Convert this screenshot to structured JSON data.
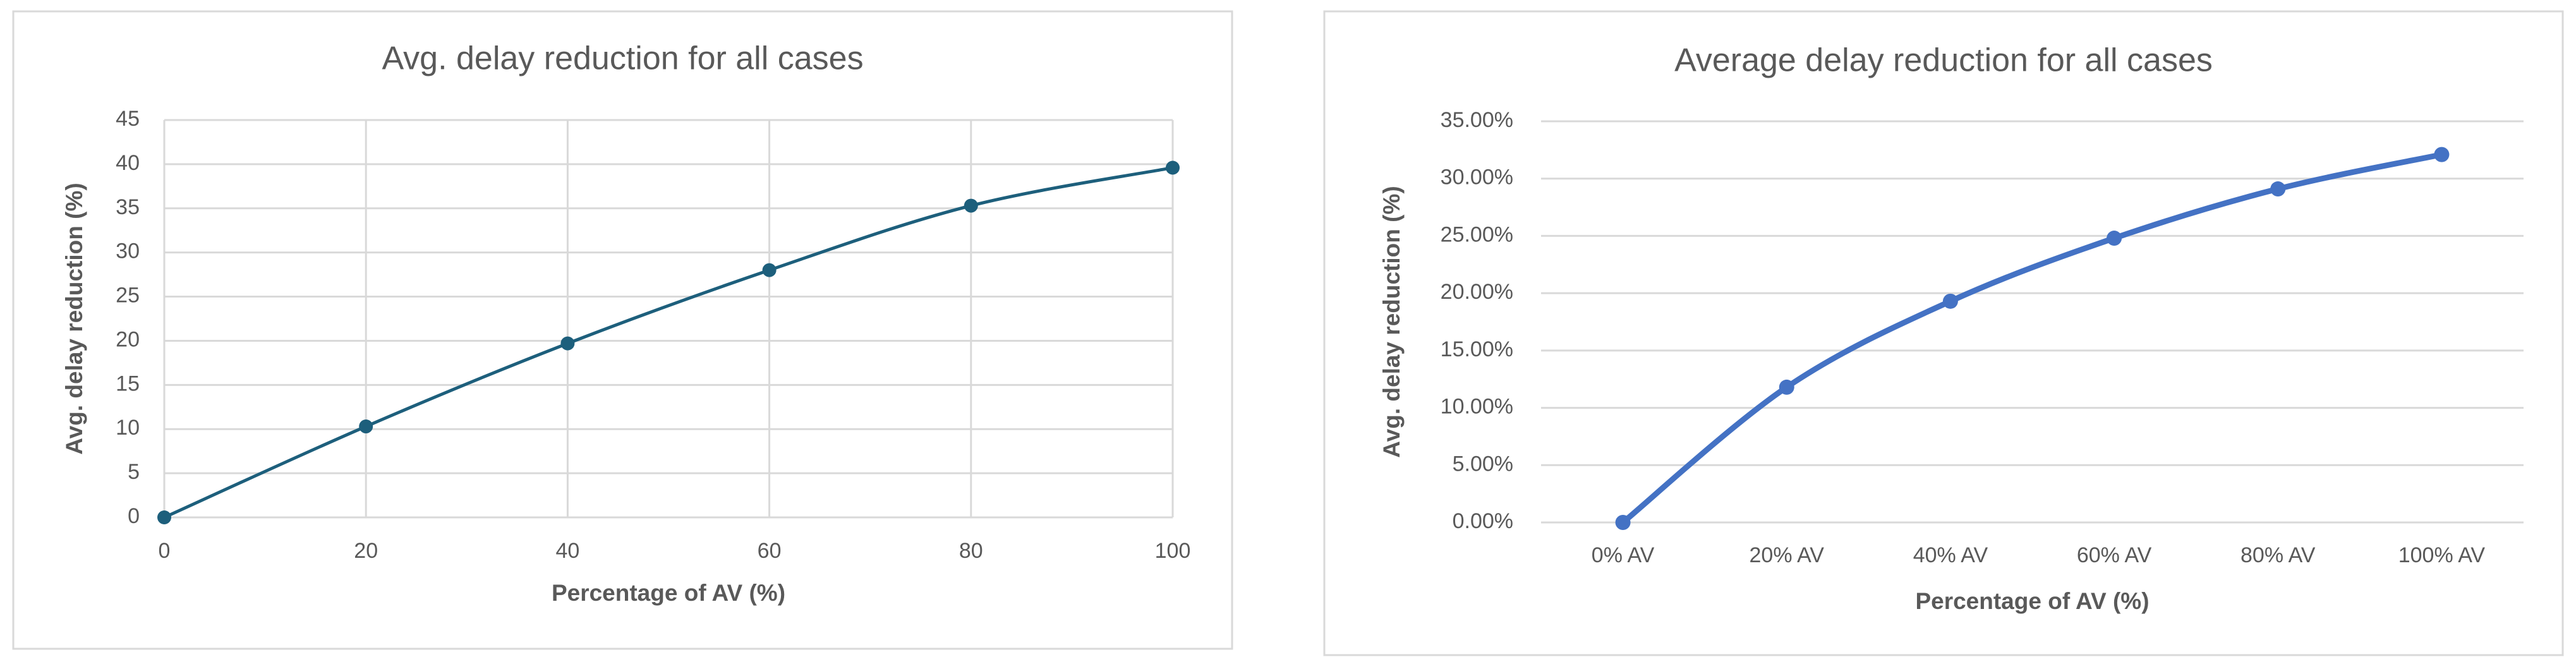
{
  "chart_data": [
    {
      "type": "line",
      "title": "Avg. delay reduction for all cases",
      "x_label": "Percentage of AV (%)",
      "y_label": "Avg. delay reduction (%)",
      "x": [
        0,
        20,
        40,
        60,
        80,
        100
      ],
      "values": [
        0,
        10.3,
        19.7,
        28,
        35.3,
        39.6
      ],
      "color": "#1d5f7c",
      "smooth": true,
      "xlim": [
        0,
        100
      ],
      "xticks": [
        0,
        20,
        40,
        60,
        80,
        100
      ],
      "ylim": [
        0,
        45
      ],
      "yticks": [
        0,
        5,
        10,
        15,
        20,
        25,
        30,
        35,
        40,
        45
      ],
      "xgrid": true,
      "ygrid": true
    },
    {
      "type": "line",
      "title": "Average delay reduction for all cases",
      "x_label": "Percentage of AV (%)",
      "y_label": "Avg. delay reduction (%)",
      "categories": [
        "0% AV",
        "20% AV",
        "40% AV",
        "60% AV",
        "80% AV",
        "100% AV"
      ],
      "values": [
        0,
        11.8,
        19.3,
        24.8,
        29.1,
        32.1
      ],
      "color": "#4472c4",
      "smooth": true,
      "ylim": [
        0,
        35
      ],
      "yticks": [
        {
          "value": 0,
          "label": "0.00%"
        },
        {
          "value": 5,
          "label": "5.00%"
        },
        {
          "value": 10,
          "label": "10.00%"
        },
        {
          "value": 15,
          "label": "15.00%"
        },
        {
          "value": 20,
          "label": "20.00%"
        },
        {
          "value": 25,
          "label": "25.00%"
        },
        {
          "value": 30,
          "label": "30.00%"
        },
        {
          "value": 35,
          "label": "35.00%"
        }
      ],
      "xgrid": false,
      "ygrid": true
    }
  ]
}
